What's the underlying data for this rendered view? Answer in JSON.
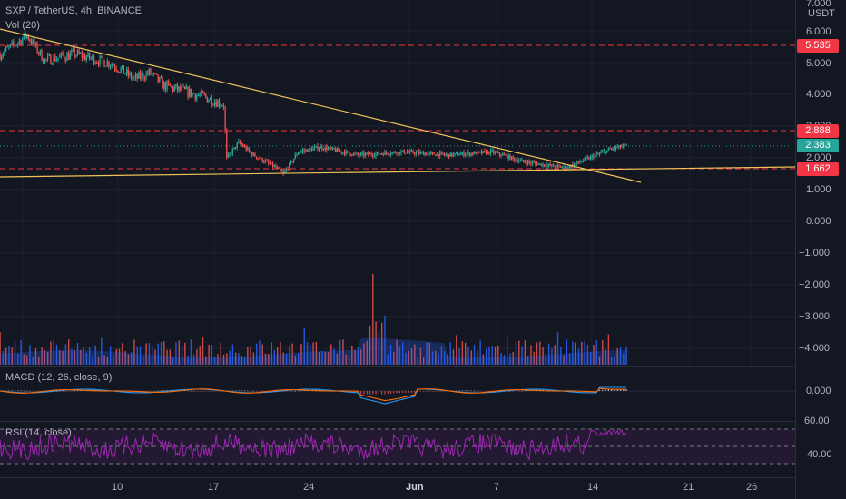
{
  "legend": {
    "symbol": "SXP / TetherUS, 4h, BINANCE",
    "volume": "Vol (20)",
    "macd": "MACD (12, 26, close, 9)",
    "rsi": "RSI (14, close)"
  },
  "price_scale": {
    "currency": "USDT",
    "ticks": [
      "7.000",
      "6.000",
      "5.000",
      "4.000",
      "3.000",
      "2.000",
      "1.000",
      "0.000",
      "−1.000",
      "−2.000",
      "−3.000",
      "−4.000"
    ]
  },
  "price_badges": {
    "resistance_upper": "5.535",
    "resistance_lower": "2.888",
    "last_price": "2.383",
    "support": "1.662"
  },
  "macd_scale": {
    "zero": "0.000"
  },
  "rsi_scale": {
    "upper": "60.00",
    "lower": "40.00"
  },
  "time_axis": {
    "labels": [
      "10",
      "17",
      "24",
      "Jun",
      "7",
      "14",
      "21",
      "26"
    ]
  },
  "colors": {
    "background": "#131722",
    "up": "#26a69a",
    "down": "#ef5350",
    "trendline": "#f0c25a",
    "resistance": "#f23645",
    "volume": "#2962ff",
    "rsi": "#9c27b0",
    "macd": "#2196f3",
    "signal": "#ff6d00"
  }
}
